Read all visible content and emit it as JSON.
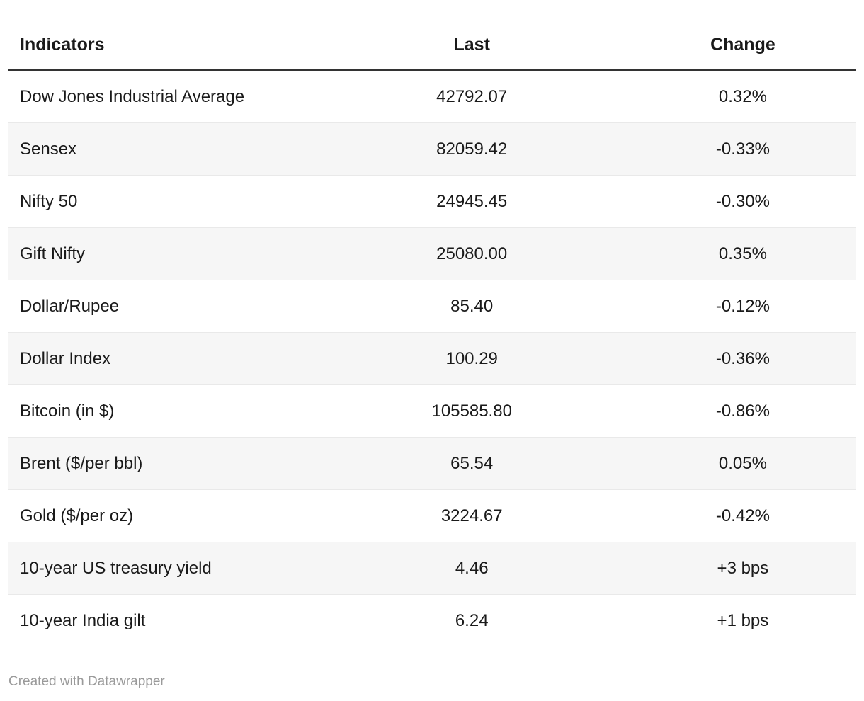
{
  "chart_data": {
    "type": "table",
    "columns": [
      "Indicators",
      "Last",
      "Change"
    ],
    "column_align": [
      "left",
      "center",
      "center"
    ],
    "rows": [
      [
        "Dow Jones Industrial Average",
        "42792.07",
        "0.32%"
      ],
      [
        "Sensex",
        "82059.42",
        "-0.33%"
      ],
      [
        "Nifty 50",
        "24945.45",
        "-0.30%"
      ],
      [
        "Gift Nifty",
        "25080.00",
        "0.35%"
      ],
      [
        "Dollar/Rupee",
        "85.40",
        "-0.12%"
      ],
      [
        "Dollar Index",
        "100.29",
        "-0.36%"
      ],
      [
        "Bitcoin (in $)",
        "105585.80",
        "-0.86%"
      ],
      [
        "Brent ($/per bbl)",
        "65.54",
        "0.05%"
      ],
      [
        "Gold ($/per oz)",
        "3224.67",
        "-0.42%"
      ],
      [
        "10-year US treasury yield",
        "4.46",
        "+3 bps"
      ],
      [
        "10-year India gilt",
        "6.24",
        "+1 bps"
      ]
    ],
    "title": "",
    "legend_position": "none",
    "grid": "zebra-stripes"
  },
  "footer": {
    "credit": "Created with Datawrapper"
  },
  "colors": {
    "background": "#ffffff",
    "text": "#1a1a1a",
    "header_rule": "#333333",
    "row_stripe": "#f6f6f6",
    "row_border": "#e9e9e9",
    "footer_text": "#9a9a9a"
  }
}
